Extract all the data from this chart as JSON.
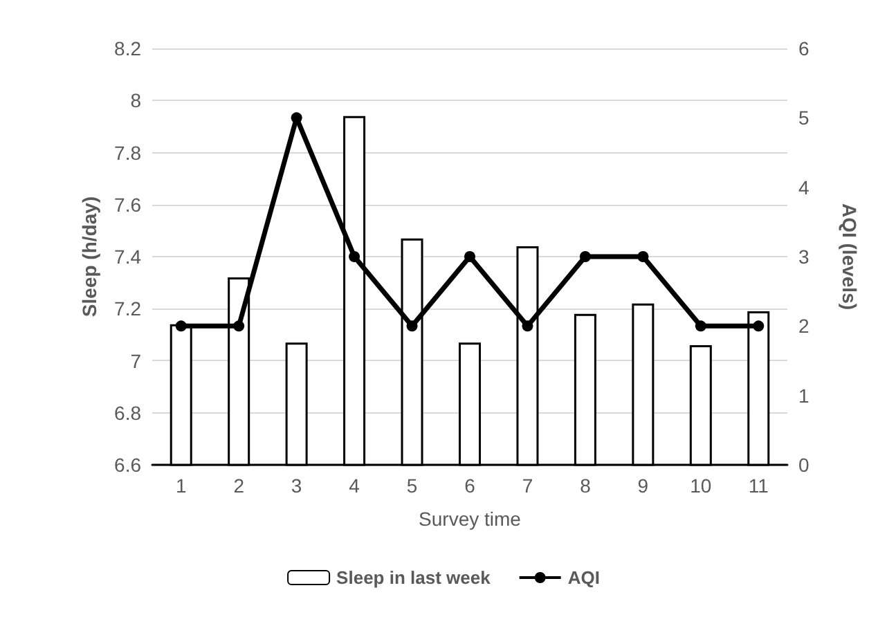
{
  "chart_data": {
    "type": "bar",
    "xlabel": "Survey time",
    "ylabel": "Sleep (h/day)",
    "y2label": "AQI (levels)",
    "categories": [
      "1",
      "2",
      "3",
      "4",
      "5",
      "6",
      "7",
      "8",
      "9",
      "10",
      "11"
    ],
    "series": [
      {
        "name": "Sleep in last week",
        "color": "#ffffff",
        "values": [
          7.14,
          7.32,
          7.07,
          7.94,
          7.47,
          7.07,
          7.44,
          7.18,
          7.22,
          7.06,
          7.19
        ]
      },
      {
        "name": "AQI",
        "type": "line",
        "axis": "y2",
        "color": "#000000",
        "marker": "circle",
        "values": [
          2,
          2,
          5,
          3,
          2,
          3,
          2,
          3,
          3,
          2,
          2
        ]
      }
    ],
    "ylim": [
      6.6,
      8.2
    ],
    "yticks": [
      6.6,
      6.8,
      7,
      7.2,
      7.4,
      7.6,
      7.8,
      8,
      8.2
    ],
    "y2lim": [
      0,
      6
    ],
    "y2ticks": [
      0,
      1,
      2,
      3,
      4,
      5,
      6
    ],
    "grid": "y",
    "legend": "bottom"
  }
}
